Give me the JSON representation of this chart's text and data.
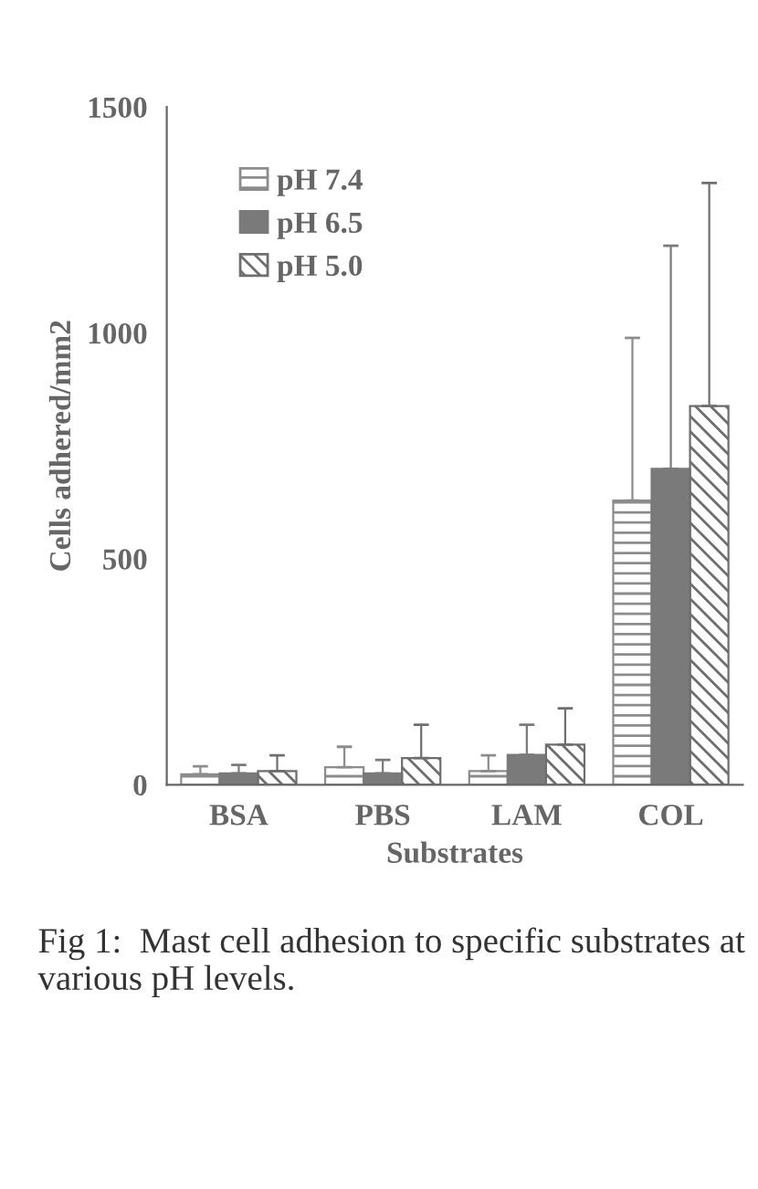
{
  "chart_data": {
    "type": "bar",
    "xlabel": "Substrates",
    "ylabel": "Cells adhered/mm2",
    "categories": [
      "BSA",
      "PBS",
      "LAM",
      "COL"
    ],
    "series": [
      {
        "name": "pH 7.4",
        "color": "#8c8c8c",
        "values": [
          23,
          39,
          30,
          629
        ],
        "errors": [
          [
            23,
            41
          ],
          [
            39,
            84
          ],
          [
            30,
            65
          ],
          [
            629,
            989
          ]
        ]
      },
      {
        "name": "pH 6.5",
        "color": "#7a7a7a",
        "values": [
          25,
          25,
          66,
          699
        ],
        "errors": [
          [
            25,
            44
          ],
          [
            25,
            55
          ],
          [
            66,
            133
          ],
          [
            699,
            1193
          ]
        ]
      },
      {
        "name": "pH 5.0",
        "color": "#6e6e6e",
        "values": [
          30,
          59,
          89,
          838
        ],
        "errors": [
          [
            30,
            65
          ],
          [
            59,
            133
          ],
          [
            89,
            169
          ],
          [
            838,
            1332
          ]
        ]
      }
    ],
    "ylim": [
      0,
      1500
    ],
    "yticks": [
      0,
      500,
      1000,
      1500
    ],
    "grid": false,
    "legend": "top left",
    "annotations": [
      "Fig 1:  Mast cell adhesion to specific substrates at various pH levels."
    ]
  }
}
